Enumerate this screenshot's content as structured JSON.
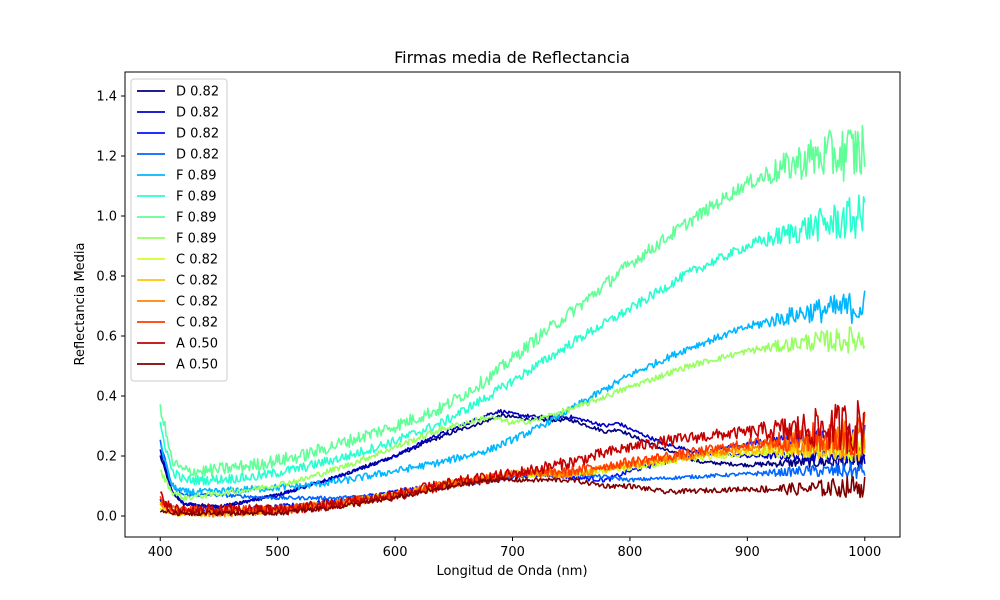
{
  "chart_data": {
    "type": "line",
    "title": "Firmas media de Reflectancia",
    "xlabel": "Longitud de Onda (nm)",
    "ylabel": "Reflectancia Media",
    "xlim": [
      370,
      1030
    ],
    "ylim": [
      -0.07,
      1.48
    ],
    "xticks": [
      400,
      500,
      600,
      700,
      800,
      900,
      1000
    ],
    "yticks": [
      0.0,
      0.2,
      0.4,
      0.6,
      0.8,
      1.0,
      1.2,
      1.4
    ],
    "xtick_labels": [
      "400",
      "500",
      "600",
      "700",
      "800",
      "900",
      "1000"
    ],
    "ytick_labels": [
      "0.0",
      "0.2",
      "0.4",
      "0.6",
      "0.8",
      "1.0",
      "1.2",
      "1.4"
    ],
    "grid": false,
    "legend_position": "upper-left",
    "series": [
      {
        "name": "D 0.82",
        "color": "#00007f",
        "x": [
          400,
          410,
          420,
          450,
          500,
          550,
          600,
          630,
          650,
          680,
          690,
          700,
          720,
          750,
          780,
          790,
          800,
          830,
          860,
          900,
          950,
          1000
        ],
        "y": [
          0.2,
          0.08,
          0.04,
          0.03,
          0.07,
          0.13,
          0.2,
          0.25,
          0.28,
          0.32,
          0.335,
          0.33,
          0.32,
          0.32,
          0.28,
          0.29,
          0.27,
          0.22,
          0.18,
          0.17,
          0.18,
          0.18
        ],
        "noise": 0.006
      },
      {
        "name": "D 0.82",
        "color": "#0000c4",
        "x": [
          400,
          410,
          420,
          450,
          500,
          550,
          600,
          630,
          650,
          680,
          690,
          700,
          720,
          750,
          780,
          790,
          800,
          830,
          860,
          900,
          950,
          1000
        ],
        "y": [
          0.22,
          0.08,
          0.04,
          0.03,
          0.07,
          0.13,
          0.2,
          0.26,
          0.29,
          0.34,
          0.35,
          0.34,
          0.33,
          0.33,
          0.3,
          0.31,
          0.29,
          0.24,
          0.21,
          0.2,
          0.2,
          0.2
        ],
        "noise": 0.006
      },
      {
        "name": "D 0.82",
        "color": "#0011ff",
        "x": [
          400,
          410,
          420,
          450,
          500,
          550,
          600,
          650,
          700,
          720,
          750,
          780,
          800,
          850,
          900,
          950,
          1000
        ],
        "y": [
          0.05,
          0.03,
          0.02,
          0.02,
          0.03,
          0.05,
          0.08,
          0.11,
          0.13,
          0.14,
          0.13,
          0.12,
          0.15,
          0.2,
          0.24,
          0.26,
          0.27
        ],
        "noise": 0.008
      },
      {
        "name": "D 0.82",
        "color": "#0066ff",
        "x": [
          400,
          410,
          420,
          450,
          500,
          550,
          600,
          650,
          700,
          720,
          750,
          780,
          800,
          850,
          900,
          950,
          1000
        ],
        "y": [
          0.25,
          0.1,
          0.07,
          0.07,
          0.06,
          0.06,
          0.07,
          0.1,
          0.13,
          0.14,
          0.14,
          0.13,
          0.12,
          0.13,
          0.14,
          0.15,
          0.15
        ],
        "noise": 0.006
      },
      {
        "name": "F 0.89",
        "color": "#00b6ff",
        "x": [
          400,
          410,
          420,
          440,
          480,
          520,
          560,
          600,
          640,
          680,
          720,
          760,
          800,
          850,
          900,
          950,
          1000
        ],
        "y": [
          0.24,
          0.1,
          0.08,
          0.08,
          0.09,
          0.1,
          0.12,
          0.15,
          0.18,
          0.22,
          0.29,
          0.38,
          0.47,
          0.56,
          0.63,
          0.68,
          0.7
        ],
        "noise": 0.012
      },
      {
        "name": "F 0.89",
        "color": "#29ffce",
        "x": [
          400,
          410,
          420,
          440,
          480,
          520,
          560,
          600,
          640,
          680,
          720,
          760,
          800,
          850,
          900,
          950,
          1000
        ],
        "y": [
          0.3,
          0.15,
          0.12,
          0.12,
          0.13,
          0.16,
          0.2,
          0.25,
          0.31,
          0.4,
          0.5,
          0.6,
          0.69,
          0.81,
          0.9,
          0.96,
          1.0
        ],
        "noise": 0.016
      },
      {
        "name": "F 0.89",
        "color": "#60ff97",
        "x": [
          400,
          410,
          420,
          440,
          480,
          520,
          560,
          600,
          640,
          680,
          720,
          760,
          800,
          850,
          900,
          950,
          1000
        ],
        "y": [
          0.37,
          0.18,
          0.15,
          0.15,
          0.17,
          0.2,
          0.25,
          0.3,
          0.36,
          0.46,
          0.59,
          0.71,
          0.84,
          0.98,
          1.11,
          1.19,
          1.22
        ],
        "noise": 0.022
      },
      {
        "name": "F 0.89",
        "color": "#97ff60",
        "x": [
          400,
          410,
          420,
          440,
          480,
          520,
          560,
          600,
          640,
          680,
          700,
          720,
          760,
          800,
          850,
          900,
          950,
          1000
        ],
        "y": [
          0.15,
          0.08,
          0.06,
          0.07,
          0.09,
          0.12,
          0.17,
          0.23,
          0.29,
          0.33,
          0.31,
          0.32,
          0.37,
          0.43,
          0.5,
          0.55,
          0.58,
          0.59
        ],
        "noise": 0.01
      },
      {
        "name": "C 0.82",
        "color": "#ceff29",
        "x": [
          400,
          410,
          420,
          450,
          500,
          550,
          600,
          650,
          700,
          750,
          800,
          850,
          900,
          950,
          1000
        ],
        "y": [
          0.03,
          0.01,
          0.01,
          0.01,
          0.02,
          0.04,
          0.07,
          0.11,
          0.14,
          0.14,
          0.16,
          0.19,
          0.21,
          0.22,
          0.23
        ],
        "noise": 0.01
      },
      {
        "name": "C 0.82",
        "color": "#ffc400",
        "x": [
          400,
          410,
          420,
          450,
          500,
          550,
          600,
          650,
          700,
          750,
          800,
          850,
          900,
          950,
          1000
        ],
        "y": [
          0.04,
          0.01,
          0.01,
          0.01,
          0.02,
          0.04,
          0.07,
          0.11,
          0.14,
          0.14,
          0.17,
          0.2,
          0.22,
          0.23,
          0.24
        ],
        "noise": 0.012
      },
      {
        "name": "C 0.82",
        "color": "#ff8200",
        "x": [
          400,
          410,
          420,
          450,
          500,
          550,
          600,
          650,
          700,
          750,
          800,
          850,
          900,
          950,
          1000
        ],
        "y": [
          0.05,
          0.02,
          0.01,
          0.01,
          0.02,
          0.04,
          0.07,
          0.11,
          0.14,
          0.14,
          0.17,
          0.2,
          0.23,
          0.25,
          0.26
        ],
        "noise": 0.014
      },
      {
        "name": "C 0.82",
        "color": "#ff3b00",
        "x": [
          400,
          410,
          420,
          450,
          500,
          550,
          600,
          650,
          700,
          750,
          800,
          850,
          900,
          950,
          1000
        ],
        "y": [
          0.06,
          0.02,
          0.02,
          0.02,
          0.02,
          0.04,
          0.07,
          0.11,
          0.14,
          0.15,
          0.18,
          0.21,
          0.24,
          0.26,
          0.27
        ],
        "noise": 0.016
      },
      {
        "name": "A 0.50",
        "color": "#c40000",
        "x": [
          400,
          410,
          420,
          450,
          500,
          550,
          600,
          650,
          700,
          750,
          800,
          850,
          900,
          950,
          1000
        ],
        "y": [
          0.07,
          0.02,
          0.02,
          0.02,
          0.02,
          0.04,
          0.07,
          0.11,
          0.14,
          0.18,
          0.23,
          0.26,
          0.28,
          0.29,
          0.3
        ],
        "noise": 0.02
      },
      {
        "name": "A 0.50",
        "color": "#7f0000",
        "x": [
          400,
          410,
          420,
          450,
          500,
          550,
          600,
          650,
          680,
          700,
          750,
          780,
          800,
          830,
          900,
          950,
          1000
        ],
        "y": [
          0.02,
          0.01,
          0.01,
          0.01,
          0.01,
          0.03,
          0.06,
          0.1,
          0.12,
          0.12,
          0.12,
          0.1,
          0.1,
          0.08,
          0.09,
          0.09,
          0.1
        ],
        "noise": 0.008
      }
    ]
  }
}
